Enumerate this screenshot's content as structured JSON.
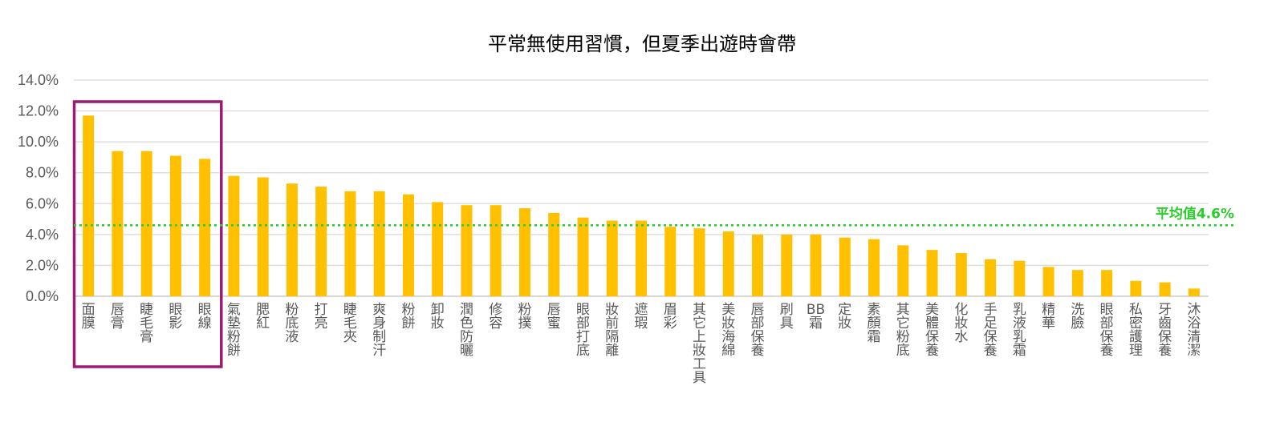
{
  "chart_data": {
    "type": "bar",
    "title": "平常無使用習慣，但夏季出遊時會帶",
    "xlabel": "",
    "ylabel": "",
    "ylim": [
      0,
      14
    ],
    "y_ticks": [
      "0.0%",
      "2.0%",
      "4.0%",
      "6.0%",
      "8.0%",
      "10.0%",
      "12.0%",
      "14.0%"
    ],
    "grid": true,
    "bar_color": "#FFC000",
    "highlight_box_color": "#9B1B6E",
    "highlight_first_n": 5,
    "average": {
      "value": 4.6,
      "label": "平均值4.6%",
      "color": "#2DCC2D"
    },
    "categories": [
      "面膜",
      "唇膏",
      "睫毛膏",
      "眼影",
      "眼線",
      "氣墊粉餅",
      "腮紅",
      "粉底液",
      "打亮",
      "睫毛夾",
      "爽身制汗",
      "粉餅",
      "卸妝",
      "潤色防曬",
      "修容",
      "粉撲",
      "唇蜜",
      "眼部打底",
      "妝前隔離",
      "遮瑕",
      "眉彩",
      "其它上妝工具",
      "美妝海綿",
      "唇部保養",
      "刷具",
      "BB霜",
      "定妝",
      "素顏霜",
      "其它粉底",
      "美體保養",
      "化妝水",
      "手足保養",
      "乳液乳霜",
      "精華",
      "洗臉",
      "眼部保養",
      "私密護理",
      "牙齒保養",
      "沐浴清潔"
    ],
    "values": [
      11.7,
      9.4,
      9.4,
      9.1,
      8.9,
      7.8,
      7.7,
      7.3,
      7.1,
      6.8,
      6.8,
      6.6,
      6.1,
      5.9,
      5.9,
      5.7,
      5.4,
      5.1,
      4.9,
      4.9,
      4.5,
      4.4,
      4.2,
      4.0,
      4.0,
      4.0,
      3.8,
      3.7,
      3.3,
      3.0,
      2.8,
      2.4,
      2.3,
      1.9,
      1.7,
      1.7,
      1.0,
      0.9,
      0.5
    ]
  }
}
